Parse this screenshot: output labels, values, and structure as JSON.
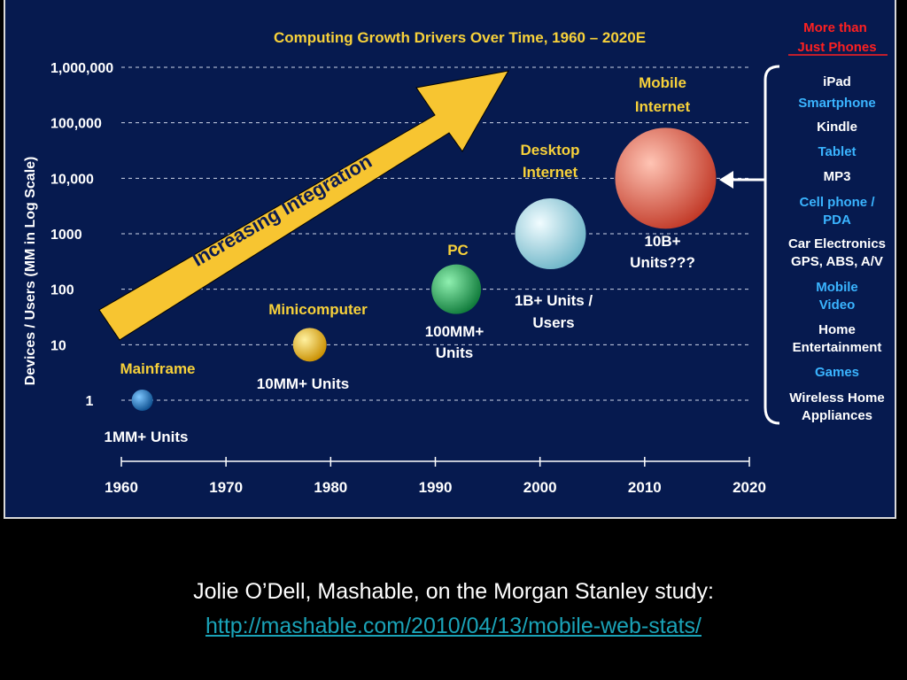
{
  "chart_data": {
    "type": "scatter",
    "scale": "log",
    "title": "Computing Growth Drivers Over Time, 1960 – 2020E",
    "ylabel": "Devices / Users (MM in Log Scale)",
    "xlabel": "",
    "xlim": [
      1960,
      2020
    ],
    "ylim": [
      1,
      1000000
    ],
    "grid": true,
    "x_ticks": [
      "1960",
      "1970",
      "1980",
      "1990",
      "2000",
      "2010",
      "2020"
    ],
    "y_ticks": [
      {
        "value": 1,
        "label": "1"
      },
      {
        "value": 10,
        "label": "10"
      },
      {
        "value": 100,
        "label": "100"
      },
      {
        "value": 1000,
        "label": "1000"
      },
      {
        "value": 10000,
        "label": "10,000"
      },
      {
        "value": 100000,
        "label": "100,000"
      },
      {
        "value": 1000000,
        "label": "1,000,000"
      }
    ],
    "points": [
      {
        "name": "Mainframe",
        "x": 1962,
        "y": 1,
        "units": "1MM+ Units",
        "color": "#1d7fc9"
      },
      {
        "name": "Minicomputer",
        "x": 1978,
        "y": 10,
        "units": "10MM+ Units",
        "color": "#f2c200"
      },
      {
        "name": "PC",
        "x": 1992,
        "y": 100,
        "units": "100MM+ Units",
        "color": "#1faa55"
      },
      {
        "name": "Desktop Internet",
        "x": 2001,
        "y": 1000,
        "units": "1B+ Units / Users",
        "color": "#a9dbe8"
      },
      {
        "name": "Mobile Internet",
        "x": 2012,
        "y": 10000,
        "units": "10B+ Units???",
        "color": "#ee6a55"
      }
    ],
    "annotations": {
      "arrow_label": "Increasing Integration",
      "arrow_color": "#f7c531"
    },
    "sidebar": {
      "title": "More than Just Phones",
      "title_color": "#ff2020",
      "items": [
        {
          "label": "iPad",
          "color": "#ffffff"
        },
        {
          "label": "Smartphone",
          "color": "#3ab4ff"
        },
        {
          "label": "Kindle",
          "color": "#ffffff"
        },
        {
          "label": "Tablet",
          "color": "#3ab4ff"
        },
        {
          "label": "MP3",
          "color": "#ffffff"
        },
        {
          "label": "Cell phone / PDA",
          "color": "#3ab4ff"
        },
        {
          "label": "Car Electronics GPS, ABS, A/V",
          "color": "#ffffff"
        },
        {
          "label": "Mobile Video",
          "color": "#3ab4ff"
        },
        {
          "label": "Home Entertainment",
          "color": "#ffffff"
        },
        {
          "label": "Games",
          "color": "#3ab4ff"
        },
        {
          "label": "Wireless Home Appliances",
          "color": "#ffffff"
        }
      ]
    }
  },
  "colors": {
    "panel_bg": "#061a4f",
    "title": "#f7d13a",
    "label_yellow": "#f7d13a",
    "axis_text": "#ffffff"
  },
  "caption": {
    "line": "Jolie O’Dell, Mashable, on the Morgan Stanley study:",
    "link": "http://mashable.com/2010/04/13/mobile-web-stats/"
  }
}
